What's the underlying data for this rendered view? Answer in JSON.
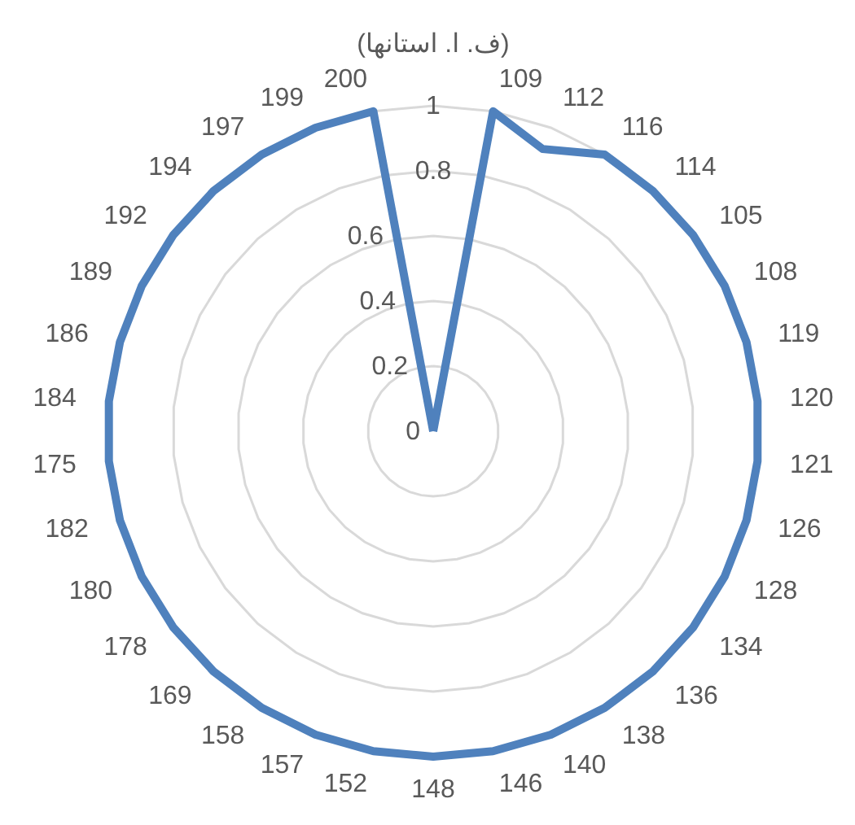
{
  "chart_data": {
    "type": "radar",
    "categories": [
      "(ف. ا. استانها)",
      "109",
      "112",
      "116",
      "114",
      "105",
      "108",
      "119",
      "120",
      "121",
      "126",
      "128",
      "134",
      "136",
      "138",
      "140",
      "146",
      "148",
      "152",
      "157",
      "158",
      "169",
      "178",
      "180",
      "182",
      "175",
      "184",
      "186",
      "189",
      "192",
      "194",
      "197",
      "199",
      "200"
    ],
    "series": [
      {
        "color": "#4f81bd",
        "values": [
          0,
          1,
          0.93,
          1,
          1,
          1,
          1,
          1,
          1,
          1,
          1,
          1,
          1,
          1,
          1,
          1,
          1,
          1,
          1,
          1,
          1,
          1,
          1,
          1,
          1,
          1,
          1,
          1,
          1,
          1,
          1,
          1,
          1,
          1
        ]
      }
    ],
    "ylim": [
      0,
      1
    ],
    "yticks": [
      0,
      0.2,
      0.4,
      0.6,
      0.8,
      1
    ],
    "grid": true,
    "marker": "none"
  }
}
